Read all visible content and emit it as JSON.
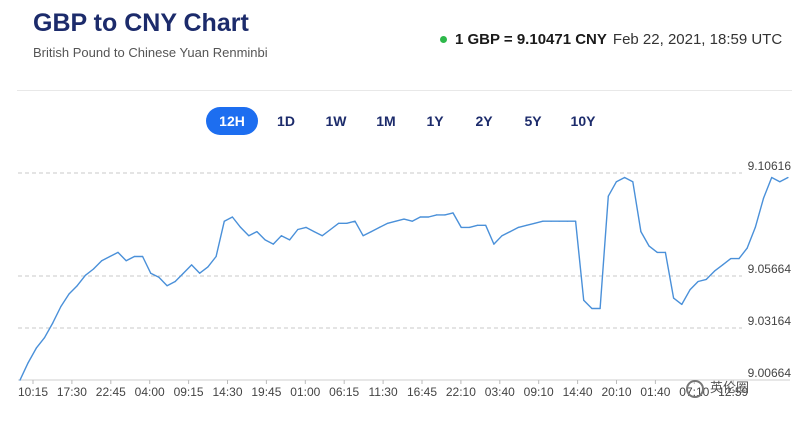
{
  "header": {
    "title": "GBP to CNY Chart",
    "subtitle": "British Pound to Chinese Yuan Renminbi",
    "rate_text": "1 GBP = 9.10471 CNY",
    "timestamp": "Feb 22, 2021, 18:59 UTC",
    "live_color": "#2db84a"
  },
  "ranges": [
    "12H",
    "1D",
    "1W",
    "1M",
    "1Y",
    "2Y",
    "5Y",
    "10Y"
  ],
  "active_range": "12H",
  "watermark": "英伦圈",
  "colors": {
    "accent": "#1d6ef0",
    "line": "#4a90d9",
    "title": "#1c2b6b"
  },
  "chart_data": {
    "type": "line",
    "title": "",
    "xlabel": "",
    "ylabel": "",
    "ylim": [
      9.00664,
      9.10616
    ],
    "grid": true,
    "y_ticks": [
      "9.10616",
      "9.05664",
      "9.03164",
      "9.00664"
    ],
    "x_ticks": [
      "10:15",
      "17:30",
      "22:45",
      "04:00",
      "09:15",
      "14:30",
      "19:45",
      "01:00",
      "06:15",
      "11:30",
      "16:45",
      "22:10",
      "03:40",
      "09:10",
      "14:40",
      "20:10",
      "01:40",
      "07:10",
      "12:59"
    ],
    "series": [
      {
        "values": [
          9.0066,
          9.015,
          9.022,
          9.027,
          9.034,
          9.042,
          9.048,
          9.052,
          9.057,
          9.06,
          9.064,
          9.066,
          9.068,
          9.064,
          9.066,
          9.066,
          9.058,
          9.056,
          9.052,
          9.054,
          9.058,
          9.062,
          9.058,
          9.061,
          9.066,
          9.083,
          9.085,
          9.08,
          9.076,
          9.078,
          9.074,
          9.072,
          9.076,
          9.074,
          9.079,
          9.08,
          9.078,
          9.076,
          9.079,
          9.082,
          9.082,
          9.083,
          9.076,
          9.078,
          9.08,
          9.082,
          9.083,
          9.084,
          9.083,
          9.085,
          9.085,
          9.086,
          9.086,
          9.087,
          9.08,
          9.08,
          9.081,
          9.081,
          9.072,
          9.076,
          9.078,
          9.08,
          9.081,
          9.082,
          9.083,
          9.083,
          9.083,
          9.083,
          9.083,
          9.045,
          9.041,
          9.041,
          9.095,
          9.102,
          9.104,
          9.102,
          9.078,
          9.071,
          9.068,
          9.068,
          9.046,
          9.043,
          9.05,
          9.054,
          9.055,
          9.059,
          9.062,
          9.065,
          9.065,
          9.07,
          9.08,
          9.094,
          9.104,
          9.102,
          9.104
        ]
      }
    ]
  }
}
